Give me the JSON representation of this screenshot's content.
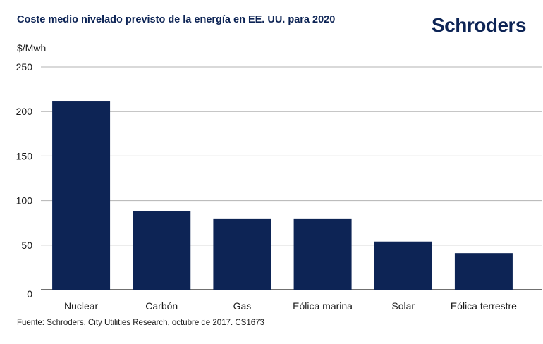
{
  "chart_data": {
    "type": "bar",
    "title": "Coste medio nivelado previsto de la energía en EE. UU. para 2020",
    "ylabel": "$/Mwh",
    "xlabel": "",
    "categories": [
      "Nuclear",
      "Carbón",
      "Gas",
      "Eólica marina",
      "Solar",
      "Eólica terrestre"
    ],
    "values": [
      212,
      88,
      80,
      80,
      54,
      41
    ],
    "ylim": [
      0,
      250
    ],
    "yticks": [
      0,
      50,
      100,
      150,
      200,
      250
    ],
    "grid": true,
    "bar_color": "#0d2455",
    "grid_color": "#b3b3b3"
  },
  "brand": {
    "logo_text": "Schroders",
    "color": "#0d2455"
  },
  "footer": {
    "source": "Fuente: Schroders, City Utilities Research, octubre de 2017. CS1673"
  }
}
